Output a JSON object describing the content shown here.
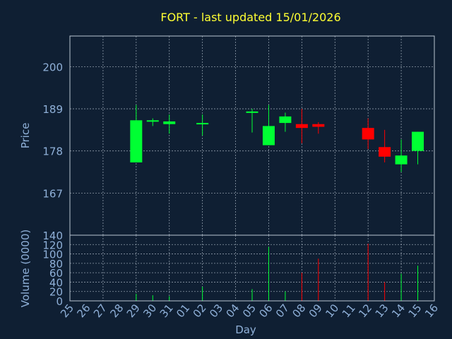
{
  "chart_data": {
    "type": "candlestick",
    "title": "FORT - last updated 15/01/2026",
    "xlabel": "Day",
    "ylabel_price": "Price",
    "ylabel_volume": "Volume (0000)",
    "price_ticks": [
      167,
      178,
      189,
      200
    ],
    "volume_ticks": [
      0,
      20,
      40,
      60,
      80,
      100,
      120,
      140
    ],
    "price_ylim": [
      156,
      208
    ],
    "volume_ylim": [
      0,
      140
    ],
    "grid": true,
    "x_labels": [
      "25",
      "26",
      "27",
      "28",
      "29",
      "30",
      "31",
      "01",
      "02",
      "03",
      "04",
      "05",
      "06",
      "07",
      "08",
      "09",
      "10",
      "11",
      "12",
      "13",
      "14",
      "15",
      "16"
    ],
    "candles": [
      {
        "day": "29",
        "open": 175,
        "close": 186,
        "high": 190,
        "low": 175,
        "volume": 15
      },
      {
        "day": "30",
        "open": 186,
        "close": 186,
        "high": 186.5,
        "low": 184.5,
        "volume": 12
      },
      {
        "day": "31",
        "open": 185,
        "close": 185.7,
        "high": 187.5,
        "low": 182.5,
        "volume": 10
      },
      {
        "day": "02",
        "open": 185.2,
        "close": 185.3,
        "high": 187.5,
        "low": 182,
        "volume": 30
      },
      {
        "day": "05",
        "open": 188,
        "close": 188.3,
        "high": 189,
        "low": 182.8,
        "volume": 25
      },
      {
        "day": "06",
        "open": 179.5,
        "close": 184.5,
        "high": 190,
        "low": 179.5,
        "volume": 115
      },
      {
        "day": "07",
        "open": 185.3,
        "close": 187,
        "high": 188,
        "low": 183,
        "volume": 20
      },
      {
        "day": "08",
        "open": 185,
        "close": 184,
        "high": 189,
        "low": 180,
        "volume": 60
      },
      {
        "day": "09",
        "open": 185,
        "close": 184.3,
        "high": 185.5,
        "low": 182.5,
        "volume": 90
      },
      {
        "day": "12",
        "open": 184,
        "close": 181,
        "high": 186.5,
        "low": 178.5,
        "volume": 122
      },
      {
        "day": "13",
        "open": 179,
        "close": 176.5,
        "high": 183.5,
        "low": 175,
        "volume": 40
      },
      {
        "day": "14",
        "open": 174.5,
        "close": 176.8,
        "high": 181,
        "low": 172.5,
        "volume": 58
      },
      {
        "day": "15",
        "open": 178,
        "close": 183,
        "high": 183,
        "low": 174.5,
        "volume": 75
      }
    ],
    "colors": {
      "background": "#0f1f33",
      "up": "#00ff33",
      "down": "#ff0000",
      "title": "#ffff33",
      "text": "#8fb0d8",
      "frame": "#b8c4d0"
    }
  }
}
